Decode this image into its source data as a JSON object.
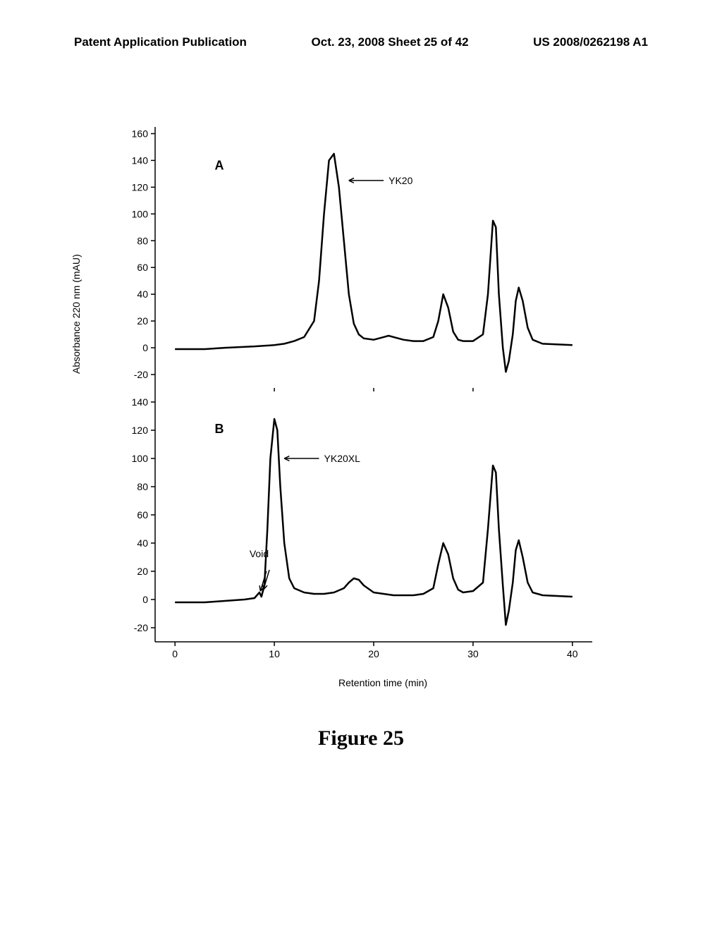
{
  "header": {
    "left": "Patent Application Publication",
    "center": "Oct. 23, 2008  Sheet 25 of 42",
    "right": "US 2008/0262198 A1"
  },
  "figure": {
    "caption": "Figure 25",
    "x_axis_label": "Retention time (min)",
    "y_axis_label": "Absorbance 220 nm (mAU)",
    "line_color": "#000000",
    "line_width": 2.5,
    "background": "#ffffff",
    "panelA": {
      "label": "A",
      "annotation": "YK20",
      "y_ticks": [
        -20,
        0,
        20,
        40,
        60,
        80,
        100,
        120,
        140,
        160
      ],
      "ylim": [
        -30,
        165
      ],
      "data": [
        [
          0,
          -1
        ],
        [
          3,
          -1
        ],
        [
          5,
          0
        ],
        [
          8,
          1
        ],
        [
          10,
          2
        ],
        [
          11,
          3
        ],
        [
          12,
          5
        ],
        [
          13,
          8
        ],
        [
          14,
          20
        ],
        [
          14.5,
          50
        ],
        [
          15,
          100
        ],
        [
          15.5,
          140
        ],
        [
          16,
          145
        ],
        [
          16.5,
          120
        ],
        [
          17,
          80
        ],
        [
          17.5,
          40
        ],
        [
          18,
          18
        ],
        [
          18.5,
          10
        ],
        [
          19,
          7
        ],
        [
          20,
          6
        ],
        [
          21,
          8
        ],
        [
          21.5,
          9
        ],
        [
          22,
          8
        ],
        [
          23,
          6
        ],
        [
          24,
          5
        ],
        [
          25,
          5
        ],
        [
          26,
          8
        ],
        [
          26.5,
          20
        ],
        [
          27,
          40
        ],
        [
          27.5,
          30
        ],
        [
          28,
          12
        ],
        [
          28.5,
          6
        ],
        [
          29,
          5
        ],
        [
          30,
          5
        ],
        [
          31,
          10
        ],
        [
          31.5,
          40
        ],
        [
          32,
          95
        ],
        [
          32.3,
          90
        ],
        [
          32.6,
          40
        ],
        [
          33,
          0
        ],
        [
          33.3,
          -18
        ],
        [
          33.6,
          -10
        ],
        [
          34,
          10
        ],
        [
          34.3,
          35
        ],
        [
          34.6,
          45
        ],
        [
          35,
          35
        ],
        [
          35.5,
          15
        ],
        [
          36,
          6
        ],
        [
          37,
          3
        ],
        [
          40,
          2
        ]
      ]
    },
    "panelB": {
      "label": "B",
      "annotations": {
        "main": "YK20XL",
        "void": "Void"
      },
      "y_ticks": [
        -20,
        0,
        20,
        40,
        60,
        80,
        100,
        120,
        140
      ],
      "ylim": [
        -30,
        150
      ],
      "x_ticks": [
        0,
        10,
        20,
        30,
        40
      ],
      "xlim": [
        -2,
        42
      ],
      "data": [
        [
          0,
          -2
        ],
        [
          3,
          -2
        ],
        [
          5,
          -1
        ],
        [
          7,
          0
        ],
        [
          8,
          1
        ],
        [
          8.5,
          5
        ],
        [
          8.7,
          2
        ],
        [
          9,
          10
        ],
        [
          9.3,
          50
        ],
        [
          9.6,
          100
        ],
        [
          10,
          128
        ],
        [
          10.3,
          120
        ],
        [
          10.6,
          80
        ],
        [
          11,
          40
        ],
        [
          11.5,
          15
        ],
        [
          12,
          8
        ],
        [
          13,
          5
        ],
        [
          14,
          4
        ],
        [
          15,
          4
        ],
        [
          16,
          5
        ],
        [
          17,
          8
        ],
        [
          17.5,
          12
        ],
        [
          18,
          15
        ],
        [
          18.5,
          14
        ],
        [
          19,
          10
        ],
        [
          20,
          5
        ],
        [
          22,
          3
        ],
        [
          24,
          3
        ],
        [
          25,
          4
        ],
        [
          26,
          8
        ],
        [
          26.5,
          25
        ],
        [
          27,
          40
        ],
        [
          27.5,
          32
        ],
        [
          28,
          15
        ],
        [
          28.5,
          7
        ],
        [
          29,
          5
        ],
        [
          30,
          6
        ],
        [
          31,
          12
        ],
        [
          31.5,
          50
        ],
        [
          32,
          95
        ],
        [
          32.3,
          90
        ],
        [
          32.6,
          50
        ],
        [
          33,
          10
        ],
        [
          33.3,
          -18
        ],
        [
          33.6,
          -8
        ],
        [
          34,
          12
        ],
        [
          34.3,
          35
        ],
        [
          34.6,
          42
        ],
        [
          35,
          30
        ],
        [
          35.5,
          12
        ],
        [
          36,
          5
        ],
        [
          37,
          3
        ],
        [
          40,
          2
        ]
      ]
    }
  }
}
